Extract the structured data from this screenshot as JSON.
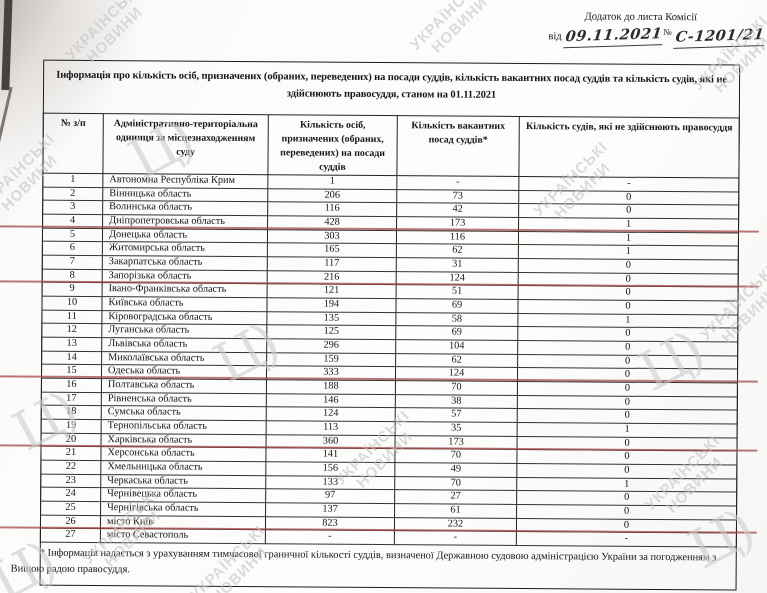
{
  "annotation": {
    "line1": "Додаток до листа Комісії",
    "prefix": "від",
    "date": "09.11.2021",
    "no_sign": "№",
    "number": "С-1201/21"
  },
  "title": "Інформація про кількість осіб, призначених (обраних, переведених) на посади суддів, кількість вакантних посад суддів та кількість судів, які не здійснюють правосуддя, станом на 01.11.2021",
  "footnote": "* Інформація надається з урахуванням тимчасової граничної кількості суддів, визначеної Державною судовою адміністрацією України за погодженням з Вищою радою правосуддя.",
  "watermark": {
    "line1": "УКРАЇНСЬКІ",
    "line2": "НОВИНИ",
    "logo": "Ц)"
  },
  "colors": {
    "red_line": "#9e4343",
    "watermark": "#c4c4c4"
  },
  "table": {
    "headers": [
      "№ з/п",
      "Адміністративно-територіальна одиниця за місцезнаходженням суду",
      "Кількість осіб, призначених (обраних, переведених) на посади суддів",
      "Кількість вакантних посад суддів*",
      "Кількість судів, які не здійснюють правосуддя"
    ],
    "rows": [
      {
        "n": "1",
        "name": "Автономна Республіка Крим",
        "appointed": "1",
        "vacant": "-",
        "not_administering": "-",
        "red_underline": false
      },
      {
        "n": "2",
        "name": "Вінницька область",
        "appointed": "206",
        "vacant": "73",
        "not_administering": "0",
        "red_underline": false
      },
      {
        "n": "3",
        "name": "Волинська область",
        "appointed": "116",
        "vacant": "42",
        "not_administering": "0",
        "red_underline": false
      },
      {
        "n": "4",
        "name": "Дніпропетровська область",
        "appointed": "428",
        "vacant": "173",
        "not_administering": "1",
        "red_underline": true
      },
      {
        "n": "5",
        "name": "Донецька область",
        "appointed": "303",
        "vacant": "116",
        "not_administering": "1",
        "red_underline": false
      },
      {
        "n": "6",
        "name": "Житомирська область",
        "appointed": "165",
        "vacant": "62",
        "not_administering": "1",
        "red_underline": false
      },
      {
        "n": "7",
        "name": "Закарпатська область",
        "appointed": "117",
        "vacant": "31",
        "not_administering": "0",
        "red_underline": false
      },
      {
        "n": "8",
        "name": "Запорізька область",
        "appointed": "216",
        "vacant": "124",
        "not_administering": "0",
        "red_underline": true
      },
      {
        "n": "9",
        "name": "Івано-Франківська область",
        "appointed": "121",
        "vacant": "51",
        "not_administering": "0",
        "red_underline": false
      },
      {
        "n": "10",
        "name": "Київська область",
        "appointed": "194",
        "vacant": "69",
        "not_administering": "0",
        "red_underline": false
      },
      {
        "n": "11",
        "name": "Кіровоградська область",
        "appointed": "135",
        "vacant": "58",
        "not_administering": "1",
        "red_underline": false
      },
      {
        "n": "12",
        "name": "Луганська область",
        "appointed": "125",
        "vacant": "69",
        "not_administering": "0",
        "red_underline": false
      },
      {
        "n": "13",
        "name": "Львівська область",
        "appointed": "296",
        "vacant": "104",
        "not_administering": "0",
        "red_underline": false
      },
      {
        "n": "14",
        "name": "Миколаївська область",
        "appointed": "159",
        "vacant": "62",
        "not_administering": "0",
        "red_underline": false
      },
      {
        "n": "15",
        "name": "Одеська область",
        "appointed": "333",
        "vacant": "124",
        "not_administering": "0",
        "red_underline": true
      },
      {
        "n": "16",
        "name": "Полтавська область",
        "appointed": "188",
        "vacant": "70",
        "not_administering": "0",
        "red_underline": false
      },
      {
        "n": "17",
        "name": "Рівненська область",
        "appointed": "146",
        "vacant": "38",
        "not_administering": "0",
        "red_underline": false
      },
      {
        "n": "18",
        "name": "Сумська область",
        "appointed": "124",
        "vacant": "57",
        "not_administering": "0",
        "red_underline": false
      },
      {
        "n": "19",
        "name": "Тернопільська область",
        "appointed": "113",
        "vacant": "35",
        "not_administering": "1",
        "red_underline": false
      },
      {
        "n": "20",
        "name": "Харківська область",
        "appointed": "360",
        "vacant": "173",
        "not_administering": "0",
        "red_underline": true
      },
      {
        "n": "21",
        "name": "Херсонська область",
        "appointed": "141",
        "vacant": "70",
        "not_administering": "0",
        "red_underline": false
      },
      {
        "n": "22",
        "name": "Хмельницька область",
        "appointed": "156",
        "vacant": "49",
        "not_administering": "0",
        "red_underline": false
      },
      {
        "n": "23",
        "name": "Черкаська область",
        "appointed": "133",
        "vacant": "70",
        "not_administering": "1",
        "red_underline": false
      },
      {
        "n": "24",
        "name": "Чернівецька область",
        "appointed": "97",
        "vacant": "27",
        "not_administering": "0",
        "red_underline": false
      },
      {
        "n": "25",
        "name": "Чернігівська область",
        "appointed": "137",
        "vacant": "61",
        "not_administering": "0",
        "red_underline": false
      },
      {
        "n": "26",
        "name": "місто Київ",
        "appointed": "823",
        "vacant": "232",
        "not_administering": "0",
        "red_underline": true
      },
      {
        "n": "27",
        "name": "місто Севастополь",
        "appointed": "-",
        "vacant": "-",
        "not_administering": "-",
        "red_underline": false
      }
    ]
  }
}
